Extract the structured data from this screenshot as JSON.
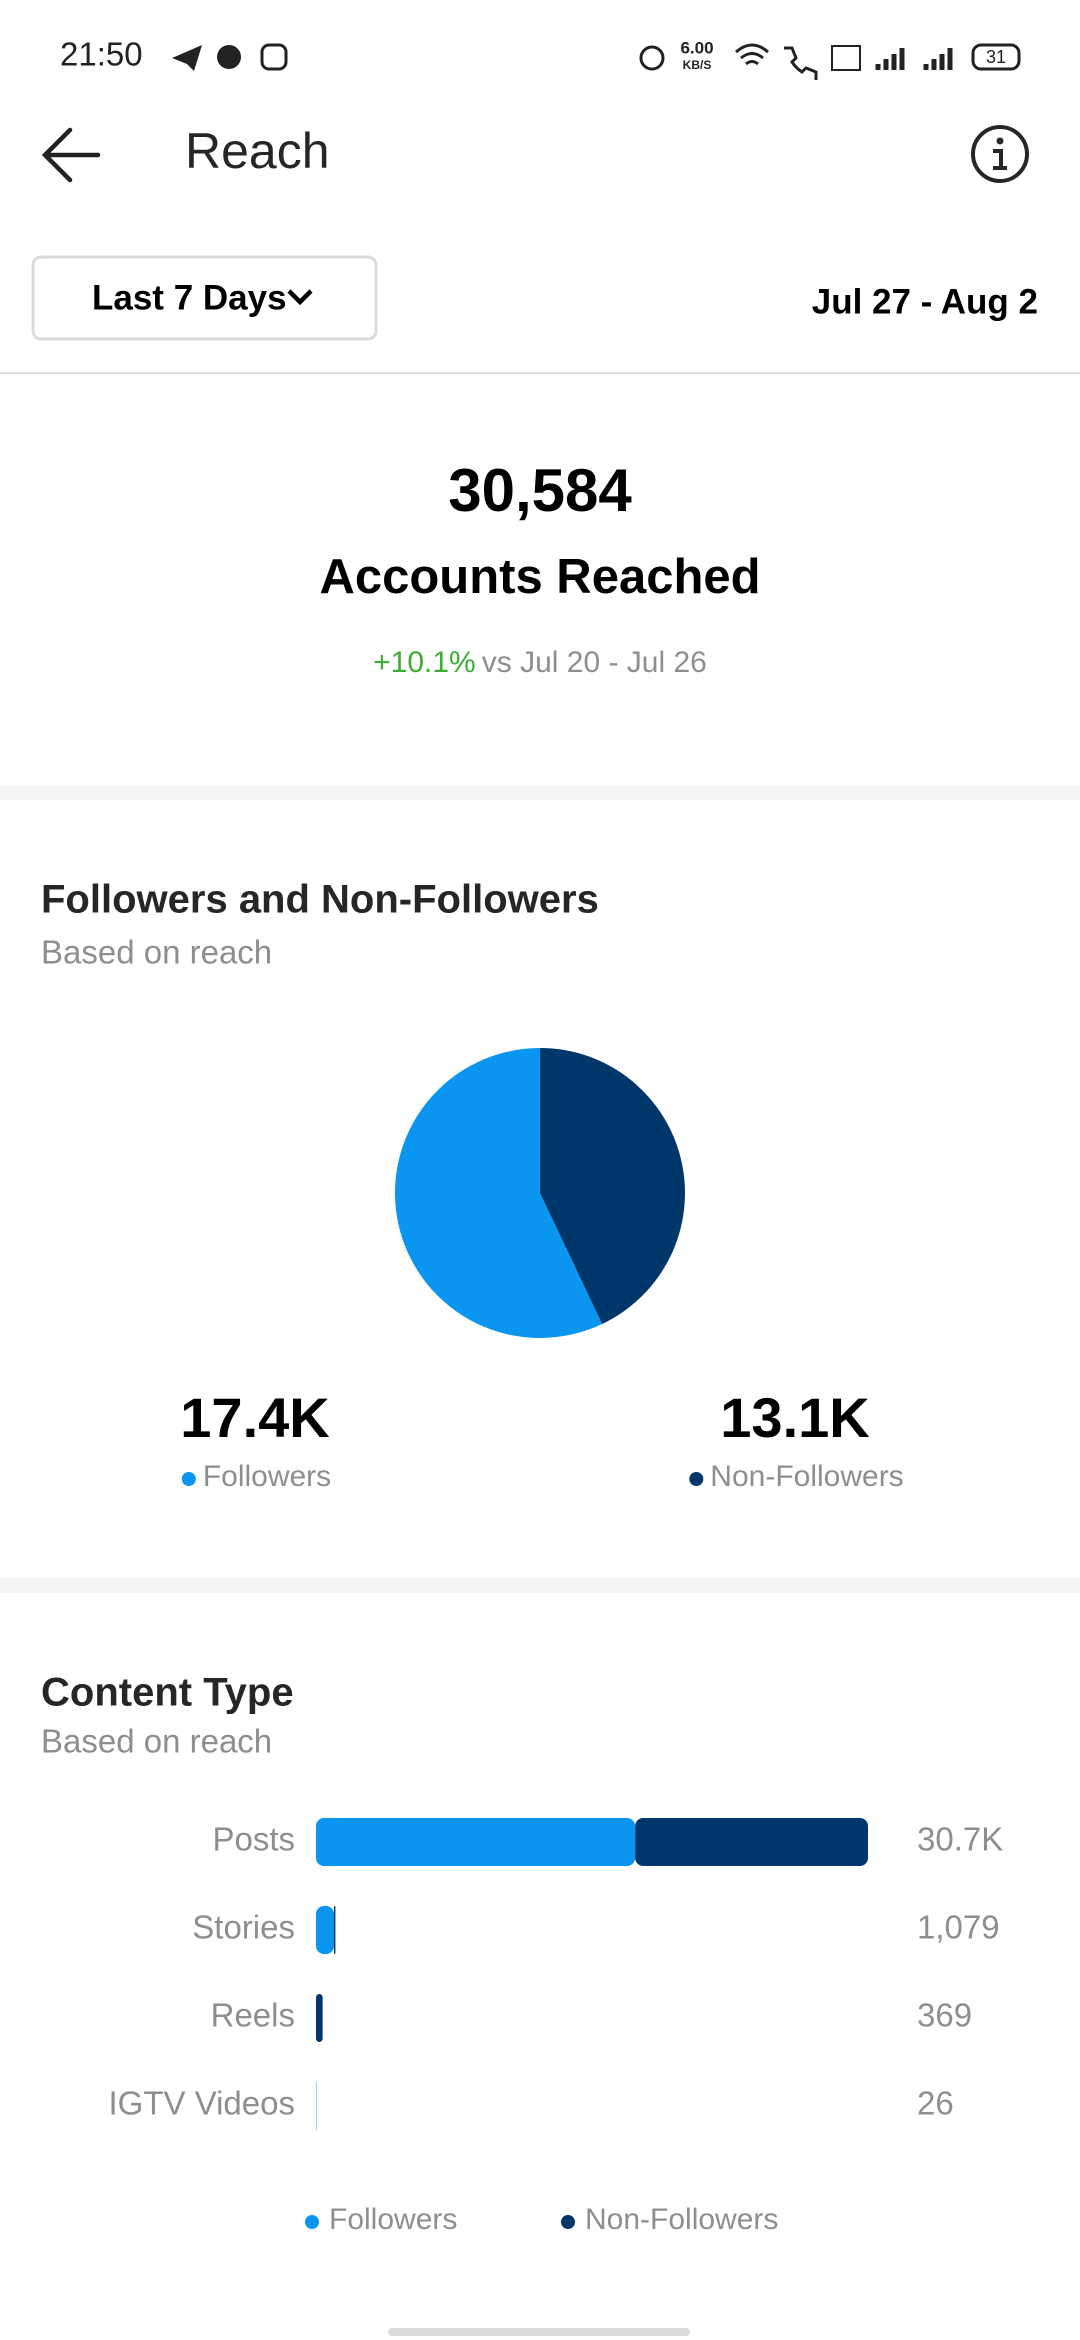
{
  "status_bar": {
    "time": "21:50",
    "net_speed": "6.00",
    "net_unit": "KB/S",
    "battery": "31"
  },
  "header": {
    "title": "Reach"
  },
  "filter": {
    "range": "Last 7 Days",
    "dates": "Jul 27 - Aug 2"
  },
  "summary": {
    "value": "30,584",
    "label": "Accounts Reached",
    "change": "+10.1%",
    "comparison": "vs Jul 20 - Jul 26"
  },
  "chart_data": [
    {
      "type": "pie",
      "title": "Followers and Non-Followers",
      "subtitle": "Based on reach",
      "categories": [
        "Followers",
        "Non-Followers"
      ],
      "values": [
        17400,
        13100
      ],
      "value_labels": [
        "17.4K",
        "13.1K"
      ],
      "colors": [
        "#0a95f0",
        "#00376b"
      ]
    },
    {
      "type": "bar",
      "orientation": "horizontal",
      "stacked": true,
      "title": "Content Type",
      "subtitle": "Based on reach",
      "categories": [
        "Posts",
        "Stories",
        "Reels",
        "IGTV Videos"
      ],
      "total_labels": [
        "30.7K",
        "1,079",
        "369",
        "26"
      ],
      "series": [
        {
          "name": "Followers",
          "color": "#0a95f0",
          "values": [
            17750,
            1000,
            0,
            20
          ]
        },
        {
          "name": "Non-Followers",
          "color": "#00376b",
          "values": [
            12950,
            79,
            369,
            6
          ]
        }
      ],
      "xlim": [
        0,
        30700
      ]
    }
  ]
}
